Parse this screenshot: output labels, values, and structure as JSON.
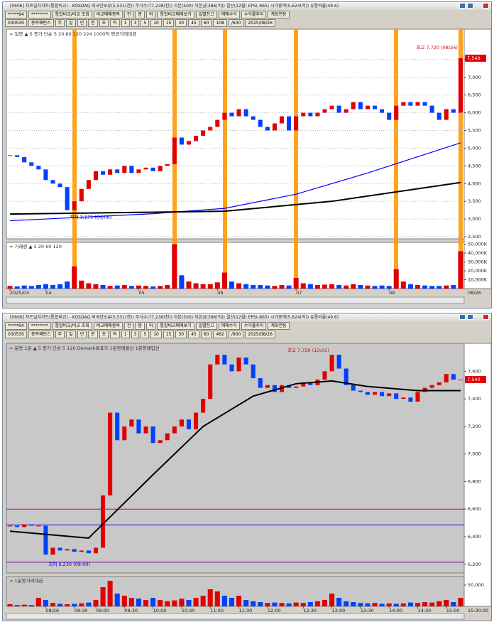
{
  "windows": [
    {
      "title": "[0606] 차트일자차트(통합비교) - KOSDAQ 외국인보유(5,531(천)) 주식수(77,238(천)) 자본(500) 자본금(386(억)) 결산(12월) EPS(-865) 시가총액(5,624(억)) 유통비율(49.6)",
      "toolbar": [
        "*****94",
        "********",
        "통합비교/비교 조회",
        "비교매매종목",
        "전",
        "봉",
        "외",
        "통합비교매매보기",
        "일별잔고",
        "매매수익",
        "수익률추이",
        "계좌연동"
      ],
      "toolbar2": [
        "030530",
        "종목패턴스",
        "주",
        "일",
        "년",
        "분",
        "초",
        "틱",
        "1",
        "3",
        "5",
        "10",
        "15",
        "30",
        "45",
        "60",
        "108",
        "/600",
        "2025/08/26"
      ]
    },
    {
      "title": "[0606] 차트일자차트(통합비교) - KOSDAQ 외국인보유(5,531(천)) 주식수(77,238(천)) 자본(500) 자본금(386(억)) 결산(12월) EPS(-865) 시가총액(5,624(억)) 유통비율(49.6)",
      "toolbar": [
        "*****94",
        "********",
        "통합비교/비교 조회",
        "비교매매종목",
        "전",
        "봉",
        "외",
        "통합비교매매보기",
        "일별잔고",
        "매매수익",
        "수익률추이",
        "계좌연동"
      ],
      "toolbar2": [
        "030530",
        "종목패턴스",
        "주",
        "일",
        "년",
        "분",
        "초",
        "틱",
        "1",
        "3",
        "5",
        "10",
        "15",
        "30",
        "45",
        "60",
        "462",
        "/900",
        "2025/08/26"
      ]
    }
  ],
  "chart_data": [
    {
      "type": "candlestick",
      "grid": true,
      "background": "#ffffff",
      "legend": "= 일봉 ▲ 5 종가 단순 5 20 60 120 224 1000억 평균거래대금",
      "xlim": [
        -0.5,
        63.5
      ],
      "xticks": [
        {
          "value": 0,
          "label": "2025/03"
        },
        {
          "value": 5,
          "label": "04"
        },
        {
          "value": 18,
          "label": "05"
        },
        {
          "value": 29,
          "label": "06"
        },
        {
          "value": 40,
          "label": "07"
        },
        {
          "value": 53,
          "label": "08"
        }
      ],
      "end_label": "08/26",
      "ylim": [
        2440,
        8360
      ],
      "yticks": [
        {
          "value": 2500,
          "label": "2,500"
        },
        {
          "value": 3000,
          "label": "3,000"
        },
        {
          "value": 3500,
          "label": "3,500"
        },
        {
          "value": 4000,
          "label": "4,000"
        },
        {
          "value": 4500,
          "label": "4,500"
        },
        {
          "value": 5000,
          "label": "5,000"
        },
        {
          "value": 5500,
          "label": "5,500"
        },
        {
          "value": 6000,
          "label": "6,000"
        },
        {
          "value": 6500,
          "label": "6,500"
        },
        {
          "value": 7000,
          "label": "7,000"
        },
        {
          "value": 7500,
          "label": "7,500"
        }
      ],
      "up_color": "#e00000",
      "down_color": "#0040ff",
      "values": [
        4800,
        4750,
        4600,
        4500,
        4400,
        4100,
        4000,
        3900,
        3250,
        3500,
        3850,
        4100,
        4350,
        4250,
        4400,
        4300,
        4500,
        4300,
        4400,
        4450,
        4350,
        4500,
        4550,
        5300,
        5100,
        5200,
        5350,
        5500,
        5600,
        5800,
        6000,
        5900,
        6100,
        5900,
        5800,
        5600,
        5500,
        5700,
        5900,
        5500,
        5900,
        6000,
        5900,
        6000,
        6100,
        6200,
        6000,
        6100,
        6300,
        6100,
        6200,
        6100,
        6000,
        5800,
        6200,
        6300,
        6200,
        6300,
        6200,
        6000,
        5800,
        6100,
        6000,
        7540
      ],
      "last_label": "7,540",
      "lines": [
        {
          "color": "#0000ff",
          "x": [
            0,
            20,
            30,
            40,
            50,
            63
          ],
          "values": [
            2950,
            3150,
            3300,
            3700,
            4300,
            5150
          ]
        },
        {
          "color": "#000000",
          "x": [
            0,
            30,
            45,
            63
          ],
          "values": [
            3140,
            3220,
            3500,
            4030
          ]
        }
      ],
      "hlines": [],
      "annotations": [
        {
          "text": "최저 3,175 (04/08)",
          "x": 8,
          "y": 3175
        },
        {
          "text": "최고 7,720 (08/26)",
          "x": 63,
          "y": 7720
        }
      ],
      "volume": {
        "legend": "= 거래량 ▲ 5 20 60 120",
        "ylim": [
          0,
          52000
        ],
        "yticks": [
          {
            "value": 10000,
            "label": "10,000K"
          },
          {
            "value": 20000,
            "label": "20,000K"
          },
          {
            "value": 30000,
            "label": "30,000K"
          },
          {
            "value": 40000,
            "label": "40,000K"
          },
          {
            "value": 50000,
            "label": "50,000K"
          }
        ],
        "values": [
          3000,
          2500,
          3500,
          3000,
          4000,
          5000,
          4000,
          5000,
          8000,
          25000,
          9000,
          6000,
          5000,
          4000,
          3000,
          3500,
          4000,
          3000,
          3500,
          3000,
          2500,
          3000,
          4000,
          50000,
          15000,
          8000,
          6000,
          5000,
          5000,
          7000,
          18000,
          8000,
          6000,
          5000,
          4000,
          4000,
          3500,
          3000,
          4000,
          3500,
          12000,
          6000,
          5000,
          4000,
          4500,
          5000,
          4000,
          3500,
          5000,
          4000,
          3500,
          3000,
          3500,
          3000,
          22000,
          8000,
          5000,
          4000,
          3500,
          3000,
          3000,
          3500,
          4000,
          42000
        ]
      }
    },
    {
      "type": "candlestick",
      "grid": false,
      "background": "#c8c8c8",
      "legend": "= 분봉 1분 ▲ 5 종가 단순 5 120 Demark목표가 1분봉매물선 1분봉매입선",
      "xlim": [
        -0.5,
        63.5
      ],
      "xticks": [
        {
          "value": 5,
          "label": "08/26"
        },
        {
          "value": 9,
          "label": "08:30"
        },
        {
          "value": 12,
          "label": "09:00"
        },
        {
          "value": 16,
          "label": "09:30"
        },
        {
          "value": 20,
          "label": "10:00"
        },
        {
          "value": 24,
          "label": "10:30"
        },
        {
          "value": 28,
          "label": "11:00"
        },
        {
          "value": 32,
          "label": "11:30"
        },
        {
          "value": 36,
          "label": "12:00"
        },
        {
          "value": 41,
          "label": "12:30"
        },
        {
          "value": 45,
          "label": "13:00"
        },
        {
          "value": 49,
          "label": "13:30"
        },
        {
          "value": 53,
          "label": "14:00"
        },
        {
          "value": 57,
          "label": "14:30"
        },
        {
          "value": 61,
          "label": "15:00"
        }
      ],
      "end_label": "15:30:00",
      "ylim": [
        6137,
        7803
      ],
      "yticks": [
        {
          "value": 6200,
          "label": "6,200"
        },
        {
          "value": 6400,
          "label": "6,400"
        },
        {
          "value": 6600,
          "label": "6,600"
        },
        {
          "value": 6800,
          "label": "6,800"
        },
        {
          "value": 7000,
          "label": "7,000"
        },
        {
          "value": 7200,
          "label": "7,200"
        },
        {
          "value": 7400,
          "label": "7,400"
        },
        {
          "value": 7600,
          "label": "7,600"
        }
      ],
      "up_color": "#e00000",
      "down_color": "#0040ff",
      "values": [
        6480,
        6470,
        6490,
        6480,
        6480,
        6270,
        6320,
        6300,
        6310,
        6290,
        6300,
        6280,
        6320,
        6700,
        7300,
        7100,
        7200,
        7250,
        7150,
        7200,
        7080,
        7100,
        7150,
        7200,
        7250,
        7180,
        7300,
        7400,
        7650,
        7720,
        7650,
        7600,
        7700,
        7650,
        7550,
        7480,
        7500,
        7450,
        7500,
        7480,
        7490,
        7520,
        7500,
        7540,
        7600,
        7720,
        7620,
        7500,
        7460,
        7450,
        7430,
        7450,
        7420,
        7440,
        7400,
        7410,
        7380,
        7450,
        7480,
        7500,
        7520,
        7580,
        7540,
        7540
      ],
      "last_label": "7,540",
      "lines": [
        {
          "color": "#000000",
          "x": [
            0,
            11,
            20,
            27,
            34,
            40,
            45,
            50,
            57,
            63
          ],
          "values": [
            6440,
            6390,
            6850,
            7200,
            7420,
            7510,
            7530,
            7490,
            7460,
            7460
          ]
        }
      ],
      "hlines": [
        {
          "value": 6600,
          "color": "#c000a0"
        },
        {
          "value": 6485,
          "color": "#0000ff"
        },
        {
          "value": 6215,
          "color": "#8000c0"
        }
      ],
      "annotations": [
        {
          "text": "최고 7,720 (13:01)",
          "x": 45,
          "y": 7720
        },
        {
          "text": "최저 6,230 (09:00)",
          "x": 5,
          "y": 6230
        }
      ],
      "volume": {
        "legend": "= 1분봉거래대금",
        "ylim": [
          0,
          70000
        ],
        "yticks": [
          {
            "value": 50000,
            "label": "50,000"
          }
        ],
        "values": [
          5000,
          3000,
          4000,
          3000,
          20000,
          15000,
          8000,
          6000,
          5000,
          6000,
          7000,
          9000,
          15000,
          45000,
          60000,
          30000,
          25000,
          20000,
          18000,
          15000,
          20000,
          15000,
          12000,
          14000,
          18000,
          15000,
          20000,
          25000,
          40000,
          35000,
          25000,
          20000,
          25000,
          15000,
          12000,
          10000,
          8000,
          9000,
          8000,
          7000,
          9000,
          8000,
          10000,
          12000,
          15000,
          30000,
          20000,
          12000,
          10000,
          8000,
          7000,
          8000,
          6000,
          7000,
          6000,
          7000,
          9000,
          8000,
          10000,
          9000,
          12000,
          15000,
          10000,
          20000
        ]
      }
    }
  ]
}
